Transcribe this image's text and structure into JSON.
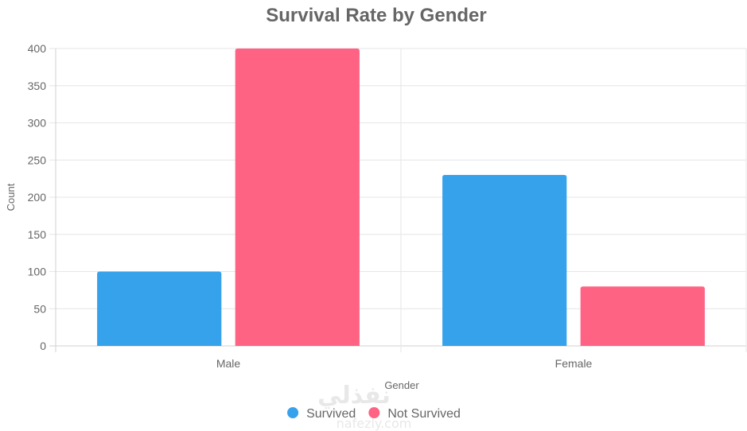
{
  "chart_data": {
    "type": "bar",
    "title": "Survival Rate by Gender",
    "xlabel": "Gender",
    "ylabel": "Count",
    "categories": [
      "Male",
      "Female"
    ],
    "series": [
      {
        "name": "Survived",
        "values": [
          100,
          230
        ],
        "color": "#36a2eb"
      },
      {
        "name": "Not Survived",
        "values": [
          400,
          80
        ],
        "color": "#ff6384"
      }
    ],
    "ylim": [
      0,
      400
    ],
    "yticks": [
      0,
      50,
      100,
      150,
      200,
      250,
      300,
      350,
      400
    ],
    "grid": true,
    "legend_position": "bottom"
  },
  "watermark": {
    "logo_text": "نفذلي",
    "site_text": "nafezly.com"
  }
}
